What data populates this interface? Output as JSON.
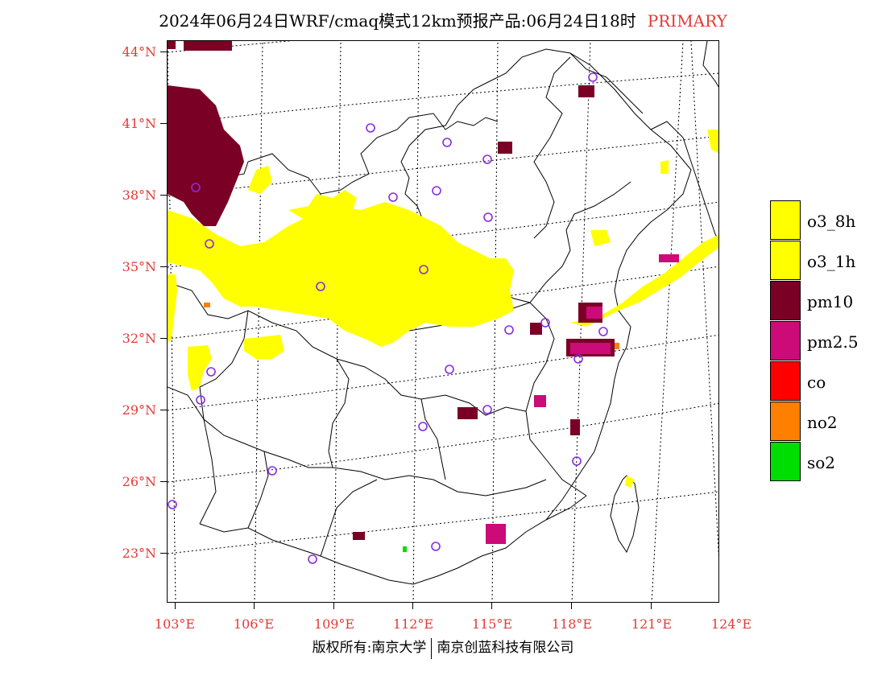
{
  "title": {
    "text": "2024年06月24日WRF/cmaq模式12km预报产品:06月24日18时",
    "tag": "PRIMARY",
    "tag_color": "#e53935"
  },
  "axes": {
    "latitudes": [
      "44°N",
      "41°N",
      "38°N",
      "35°N",
      "32°N",
      "29°N",
      "26°N",
      "23°N"
    ],
    "longitudes": [
      "103°E",
      "106°E",
      "109°E",
      "112°E",
      "115°E",
      "118°E",
      "121°E",
      "124°E"
    ],
    "label_color": "#e53935"
  },
  "legend": [
    {
      "label": "o3_8h",
      "color": "#ffff00"
    },
    {
      "label": "o3_1h",
      "color": "#ffff00"
    },
    {
      "label": "pm10",
      "color": "#7a0026"
    },
    {
      "label": "pm2.5",
      "color": "#cc0a78"
    },
    {
      "label": "co",
      "color": "#ff0000"
    },
    {
      "label": "no2",
      "color": "#ff7f00"
    },
    {
      "label": "so2",
      "color": "#00dd00"
    }
  ],
  "footer": {
    "left": "版权所有:南京大学",
    "right": "南京创蓝科技有限公司"
  }
}
